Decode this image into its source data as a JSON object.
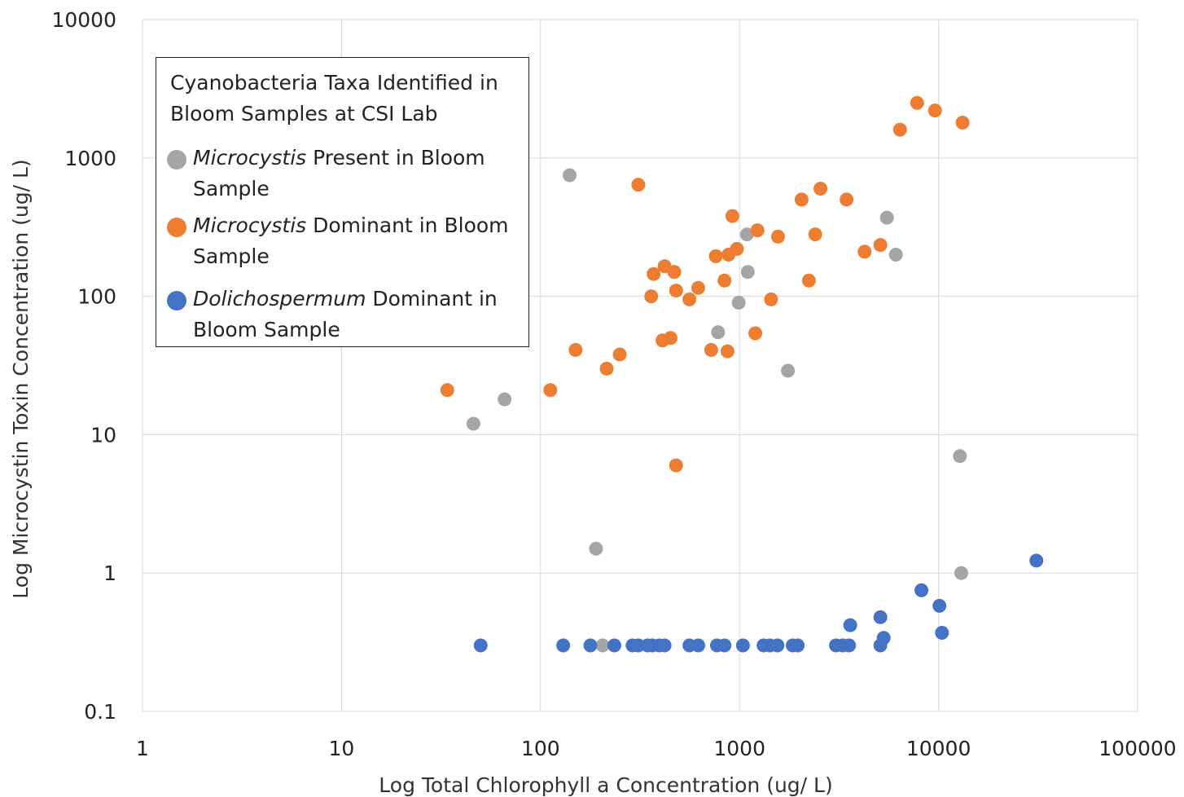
{
  "chart_data": {
    "type": "scatter",
    "title": "",
    "xlabel": "Log Total Chlorophyll a Concentration (ug/ L)",
    "ylabel": "Log Microcystin Toxin Concentration (ug/ L)",
    "x_scale": "log",
    "y_scale": "log",
    "xlim": [
      1,
      100000
    ],
    "ylim": [
      0.1,
      10000
    ],
    "x_ticks": [
      "1",
      "10",
      "100",
      "1000",
      "10000",
      "100000"
    ],
    "y_ticks": [
      "0.1",
      "1",
      "10",
      "100",
      "1000",
      "10000"
    ],
    "grid": true,
    "legend": {
      "title": "Cyanobacteria Taxa Identified in Bloom Samples at CSI Lab",
      "placement": "top-left"
    },
    "series": [
      {
        "name_italic": "Microcystis",
        "name_rest": " Present in Bloom Sample",
        "color": "#a5a5a5",
        "points": [
          [
            46,
            12
          ],
          [
            66,
            18
          ],
          [
            140,
            750
          ],
          [
            190,
            1.5
          ],
          [
            205,
            0.3
          ],
          [
            780,
            55
          ],
          [
            990,
            90
          ],
          [
            1090,
            280
          ],
          [
            1100,
            150
          ],
          [
            1750,
            29
          ],
          [
            5500,
            370
          ],
          [
            6100,
            200
          ],
          [
            12800,
            7
          ],
          [
            13000,
            1
          ]
        ]
      },
      {
        "name_italic": "Microcystis",
        "name_rest": " Dominant in Bloom Sample",
        "color": "#ed7d31",
        "points": [
          [
            34,
            21
          ],
          [
            112,
            21
          ],
          [
            150,
            41
          ],
          [
            215,
            30
          ],
          [
            250,
            38
          ],
          [
            310,
            640
          ],
          [
            360,
            100
          ],
          [
            370,
            145
          ],
          [
            410,
            48
          ],
          [
            420,
            165
          ],
          [
            450,
            50
          ],
          [
            470,
            150
          ],
          [
            480,
            110
          ],
          [
            480,
            6
          ],
          [
            560,
            95
          ],
          [
            620,
            115
          ],
          [
            720,
            41
          ],
          [
            760,
            195
          ],
          [
            840,
            130
          ],
          [
            870,
            40
          ],
          [
            880,
            200
          ],
          [
            920,
            380
          ],
          [
            970,
            220
          ],
          [
            1200,
            54
          ],
          [
            1230,
            300
          ],
          [
            1440,
            95
          ],
          [
            1560,
            270
          ],
          [
            2050,
            500
          ],
          [
            2230,
            130
          ],
          [
            2400,
            280
          ],
          [
            2550,
            600
          ],
          [
            3450,
            500
          ],
          [
            4250,
            210
          ],
          [
            5100,
            235
          ],
          [
            6400,
            1600
          ],
          [
            7800,
            2500
          ],
          [
            9600,
            2200
          ],
          [
            13200,
            1800
          ]
        ]
      },
      {
        "name_italic": "Dolichospermum",
        "name_rest": " Dominant in Bloom Sample",
        "color": "#4472c4",
        "points": [
          [
            50,
            0.3
          ],
          [
            130,
            0.3
          ],
          [
            178,
            0.3
          ],
          [
            235,
            0.3
          ],
          [
            290,
            0.3
          ],
          [
            310,
            0.3
          ],
          [
            345,
            0.3
          ],
          [
            365,
            0.3
          ],
          [
            395,
            0.3
          ],
          [
            420,
            0.3
          ],
          [
            560,
            0.3
          ],
          [
            620,
            0.3
          ],
          [
            770,
            0.3
          ],
          [
            840,
            0.3
          ],
          [
            1040,
            0.3
          ],
          [
            1320,
            0.3
          ],
          [
            1420,
            0.3
          ],
          [
            1550,
            0.3
          ],
          [
            1850,
            0.3
          ],
          [
            1960,
            0.3
          ],
          [
            3050,
            0.3
          ],
          [
            3300,
            0.3
          ],
          [
            3550,
            0.3
          ],
          [
            3600,
            0.42
          ],
          [
            5100,
            0.3
          ],
          [
            5100,
            0.48
          ],
          [
            5300,
            0.34
          ],
          [
            8200,
            0.75
          ],
          [
            10100,
            0.58
          ],
          [
            10400,
            0.37
          ],
          [
            31000,
            1.23
          ]
        ]
      }
    ]
  }
}
